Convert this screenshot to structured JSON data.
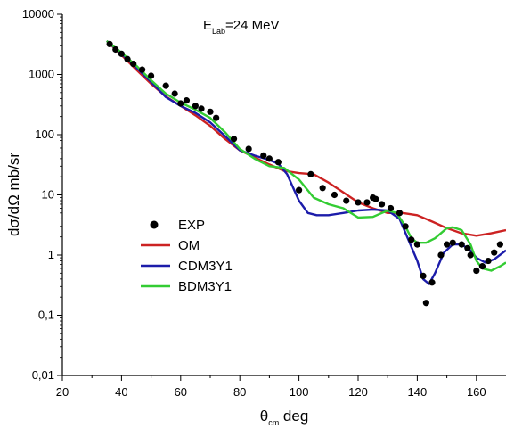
{
  "chart_data": {
    "type": "line",
    "xlabel": {
      "main": "θ",
      "sub": "cm",
      "rest": "deg"
    },
    "ylabel": "dσ/dΩ mb/sr",
    "yscale": "log",
    "xlim": [
      20,
      170
    ],
    "ylim": [
      0.01,
      10000
    ],
    "xticks": [
      20,
      40,
      60,
      80,
      100,
      120,
      140,
      160
    ],
    "yticks": [
      {
        "value": 10000,
        "label": "10000"
      },
      {
        "value": 1000,
        "label": "1000"
      },
      {
        "value": 100,
        "label": "100"
      },
      {
        "value": 10,
        "label": "10"
      },
      {
        "value": 1,
        "label": "1"
      },
      {
        "value": 0.1,
        "label": "0,1"
      },
      {
        "value": 0.01,
        "label": "0,01"
      }
    ],
    "annotation": {
      "main": "E",
      "sub": "Lab",
      "rest": "=24 MeV"
    },
    "legend_position": "left-center",
    "series": [
      {
        "name": "EXP",
        "kind": "scatter",
        "color": "#000000",
        "points": [
          [
            36,
            3200
          ],
          [
            38,
            2600
          ],
          [
            40,
            2200
          ],
          [
            42,
            1800
          ],
          [
            44,
            1500
          ],
          [
            47,
            1200
          ],
          [
            50,
            950
          ],
          [
            55,
            650
          ],
          [
            58,
            480
          ],
          [
            60,
            330
          ],
          [
            62,
            370
          ],
          [
            65,
            300
          ],
          [
            67,
            270
          ],
          [
            70,
            240
          ],
          [
            72,
            190
          ],
          [
            78,
            85
          ],
          [
            83,
            58
          ],
          [
            88,
            45
          ],
          [
            90,
            40
          ],
          [
            93,
            35
          ],
          [
            100,
            12
          ],
          [
            104,
            22
          ],
          [
            108,
            13
          ],
          [
            112,
            10
          ],
          [
            116,
            8
          ],
          [
            120,
            7.5
          ],
          [
            123,
            7.5
          ],
          [
            125,
            9
          ],
          [
            126,
            8.5
          ],
          [
            128,
            7
          ],
          [
            131,
            6
          ],
          [
            134,
            5
          ],
          [
            136,
            3
          ],
          [
            138,
            1.8
          ],
          [
            140,
            1.5
          ],
          [
            142,
            0.45
          ],
          [
            143,
            0.16
          ],
          [
            145,
            0.35
          ],
          [
            148,
            1
          ],
          [
            150,
            1.5
          ],
          [
            152,
            1.6
          ],
          [
            155,
            1.5
          ],
          [
            157,
            1.3
          ],
          [
            158,
            1
          ],
          [
            160,
            0.55
          ],
          [
            162,
            0.65
          ],
          [
            164,
            0.8
          ],
          [
            166,
            1.1
          ],
          [
            168,
            1.5
          ]
        ]
      },
      {
        "name": "OM",
        "kind": "line",
        "color": "#cc2222",
        "points": [
          [
            35,
            3600
          ],
          [
            40,
            2100
          ],
          [
            45,
            1200
          ],
          [
            50,
            700
          ],
          [
            55,
            430
          ],
          [
            60,
            300
          ],
          [
            65,
            210
          ],
          [
            70,
            140
          ],
          [
            75,
            85
          ],
          [
            80,
            55
          ],
          [
            85,
            42
          ],
          [
            90,
            32
          ],
          [
            95,
            25
          ],
          [
            100,
            23
          ],
          [
            105,
            22
          ],
          [
            110,
            16
          ],
          [
            115,
            11
          ],
          [
            120,
            7.5
          ],
          [
            125,
            6
          ],
          [
            130,
            5
          ],
          [
            135,
            5
          ],
          [
            140,
            4.6
          ],
          [
            145,
            3.6
          ],
          [
            150,
            2.8
          ],
          [
            155,
            2.3
          ],
          [
            160,
            2.1
          ],
          [
            165,
            2.3
          ],
          [
            170,
            2.6
          ]
        ]
      },
      {
        "name": "CDM3Y1",
        "kind": "line",
        "color": "#1c1caa",
        "points": [
          [
            35,
            3600
          ],
          [
            40,
            2200
          ],
          [
            45,
            1300
          ],
          [
            50,
            750
          ],
          [
            55,
            420
          ],
          [
            60,
            300
          ],
          [
            65,
            230
          ],
          [
            70,
            160
          ],
          [
            75,
            95
          ],
          [
            80,
            55
          ],
          [
            85,
            45
          ],
          [
            90,
            38
          ],
          [
            93,
            33
          ],
          [
            96,
            22
          ],
          [
            100,
            8
          ],
          [
            103,
            5
          ],
          [
            106,
            4.6
          ],
          [
            110,
            4.6
          ],
          [
            115,
            5
          ],
          [
            120,
            5.5
          ],
          [
            125,
            5.7
          ],
          [
            130,
            5.5
          ],
          [
            134,
            4
          ],
          [
            137,
            1.8
          ],
          [
            140,
            0.8
          ],
          [
            142,
            0.4
          ],
          [
            144,
            0.33
          ],
          [
            146,
            0.5
          ],
          [
            149,
            1.1
          ],
          [
            152,
            1.5
          ],
          [
            155,
            1.5
          ],
          [
            158,
            1.2
          ],
          [
            160,
            0.9
          ],
          [
            163,
            0.75
          ],
          [
            166,
            0.85
          ],
          [
            170,
            1.2
          ]
        ]
      },
      {
        "name": "BDM3Y1",
        "kind": "line",
        "color": "#33cc33",
        "points": [
          [
            35,
            3600
          ],
          [
            40,
            2300
          ],
          [
            45,
            1400
          ],
          [
            50,
            800
          ],
          [
            55,
            480
          ],
          [
            60,
            340
          ],
          [
            65,
            260
          ],
          [
            70,
            190
          ],
          [
            75,
            110
          ],
          [
            80,
            58
          ],
          [
            85,
            40
          ],
          [
            90,
            30
          ],
          [
            95,
            28
          ],
          [
            100,
            18
          ],
          [
            105,
            9
          ],
          [
            110,
            7
          ],
          [
            115,
            6
          ],
          [
            120,
            4.2
          ],
          [
            125,
            4.3
          ],
          [
            130,
            5.5
          ],
          [
            133,
            5
          ],
          [
            136,
            3
          ],
          [
            138,
            1.9
          ],
          [
            140,
            1.6
          ],
          [
            143,
            1.6
          ],
          [
            146,
            1.9
          ],
          [
            150,
            2.8
          ],
          [
            152,
            2.9
          ],
          [
            155,
            2.6
          ],
          [
            158,
            1.5
          ],
          [
            160,
            0.8
          ],
          [
            162,
            0.6
          ],
          [
            165,
            0.55
          ],
          [
            168,
            0.65
          ],
          [
            170,
            0.75
          ]
        ]
      }
    ]
  }
}
